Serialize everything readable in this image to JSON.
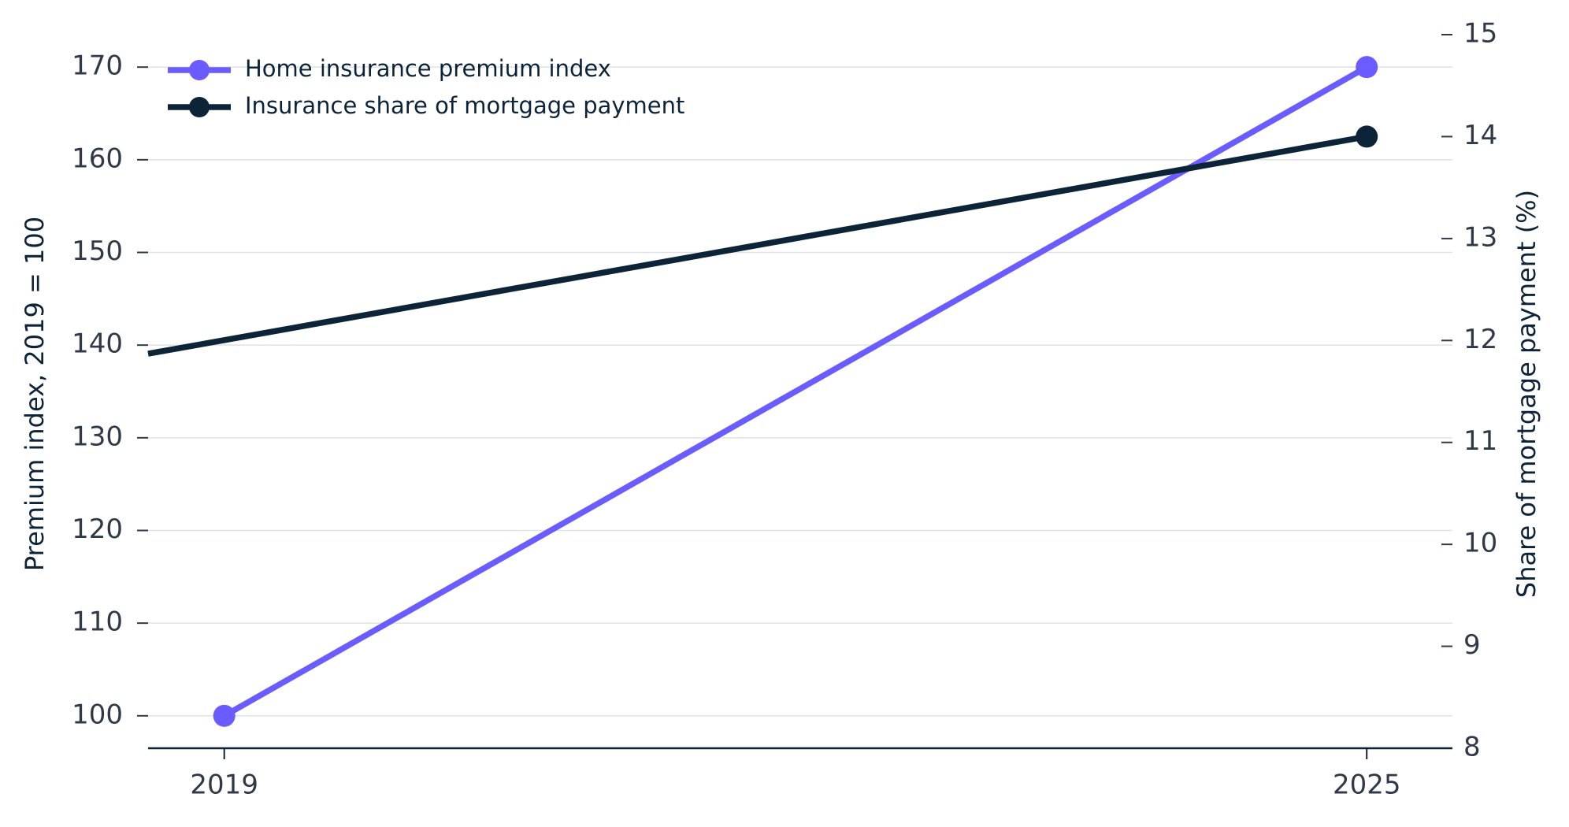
{
  "chart_data": {
    "type": "line",
    "xlim": [
      2018.6,
      2025.45
    ],
    "xticks": [
      2019,
      2025
    ],
    "ylim": [
      96.5,
      173.5
    ],
    "yticks": [
      100,
      110,
      120,
      130,
      140,
      150,
      160,
      170
    ],
    "y2lim": [
      8,
      15
    ],
    "y2ticks": [
      8,
      9,
      10,
      11,
      12,
      13,
      14,
      15
    ],
    "ylabel": "Premium index, 2019 = 100",
    "y2label": "Share of mortgage payment (%)",
    "grid": true,
    "legend": "upper left",
    "series": [
      {
        "name": "Home insurance premium index",
        "color": "#6a5cff",
        "x": [
          2019,
          2025
        ],
        "values": [
          100,
          170
        ],
        "markers": "all"
      },
      {
        "name": "Insurance share of mortgage payment",
        "color": "#0d2338",
        "x": [
          2018.6,
          2025
        ],
        "values": [
          11.87,
          14
        ],
        "axis": "y2",
        "markers": "end"
      }
    ]
  }
}
